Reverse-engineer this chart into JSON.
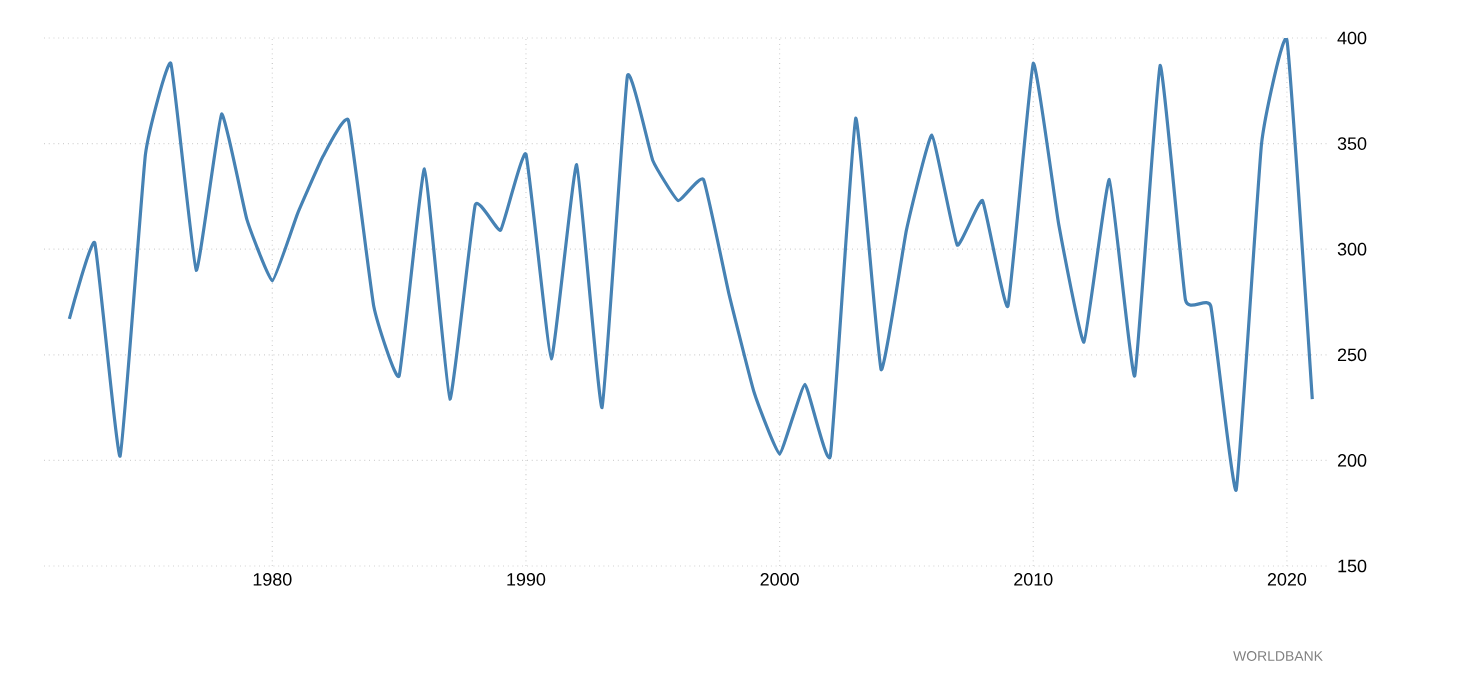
{
  "chart_data": {
    "type": "line",
    "x": [
      1972,
      1973,
      1974,
      1975,
      1976,
      1977,
      1978,
      1979,
      1980,
      1981,
      1982,
      1983,
      1984,
      1985,
      1986,
      1987,
      1988,
      1989,
      1990,
      1991,
      1992,
      1993,
      1994,
      1995,
      1996,
      1997,
      1998,
      1999,
      2000,
      2001,
      2002,
      2003,
      2004,
      2005,
      2006,
      2007,
      2008,
      2009,
      2010,
      2011,
      2012,
      2013,
      2014,
      2015,
      2016,
      2017,
      2018,
      2019,
      2020,
      2021
    ],
    "series": [
      {
        "color": "#4682b4",
        "values": [
          267,
          303,
          202,
          345,
          388,
          290,
          364,
          314,
          285,
          317,
          344,
          361,
          273,
          240,
          338,
          229,
          321,
          309,
          345,
          248,
          340,
          225,
          382,
          342,
          323,
          333,
          279,
          232,
          203,
          236,
          202,
          362,
          243,
          309,
          354,
          302,
          323,
          273,
          388,
          312,
          256,
          333,
          240,
          387,
          276,
          273,
          186,
          350,
          399,
          229
        ]
      }
    ],
    "xlim": [
      1971,
      2021.7
    ],
    "ylim": [
      150,
      400
    ],
    "xticks": [
      1980,
      1990,
      2000,
      2010,
      2020
    ],
    "yticks": [
      150,
      200,
      250,
      300,
      350,
      400
    ],
    "grid": true,
    "annotations": [
      "WORLDBANK"
    ]
  }
}
